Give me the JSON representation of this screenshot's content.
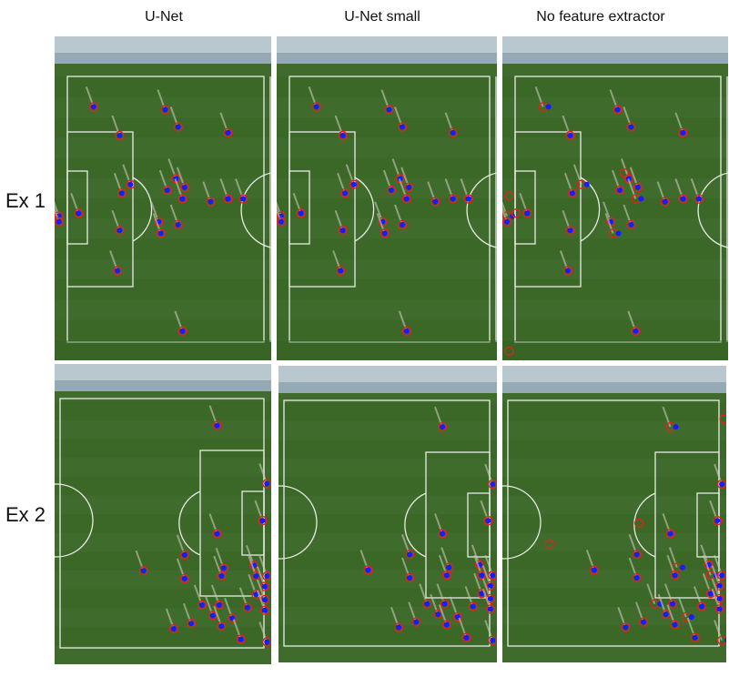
{
  "columns": [
    "U-Net",
    "U-Net small",
    "No feature extractor"
  ],
  "rows": [
    "Ex 1",
    "Ex 2"
  ],
  "colors": {
    "pitch": "#3f6b2c",
    "pitch_dark": "#35601f",
    "lines": "#e8ece6",
    "stands": "#b9c7cf",
    "prediction_dot": "#1a1aff",
    "ground_truth_ring": "#e0241a"
  },
  "legend_semantics": {
    "blue_dot": "predicted player location",
    "red_circle": "ground-truth player location"
  }
}
